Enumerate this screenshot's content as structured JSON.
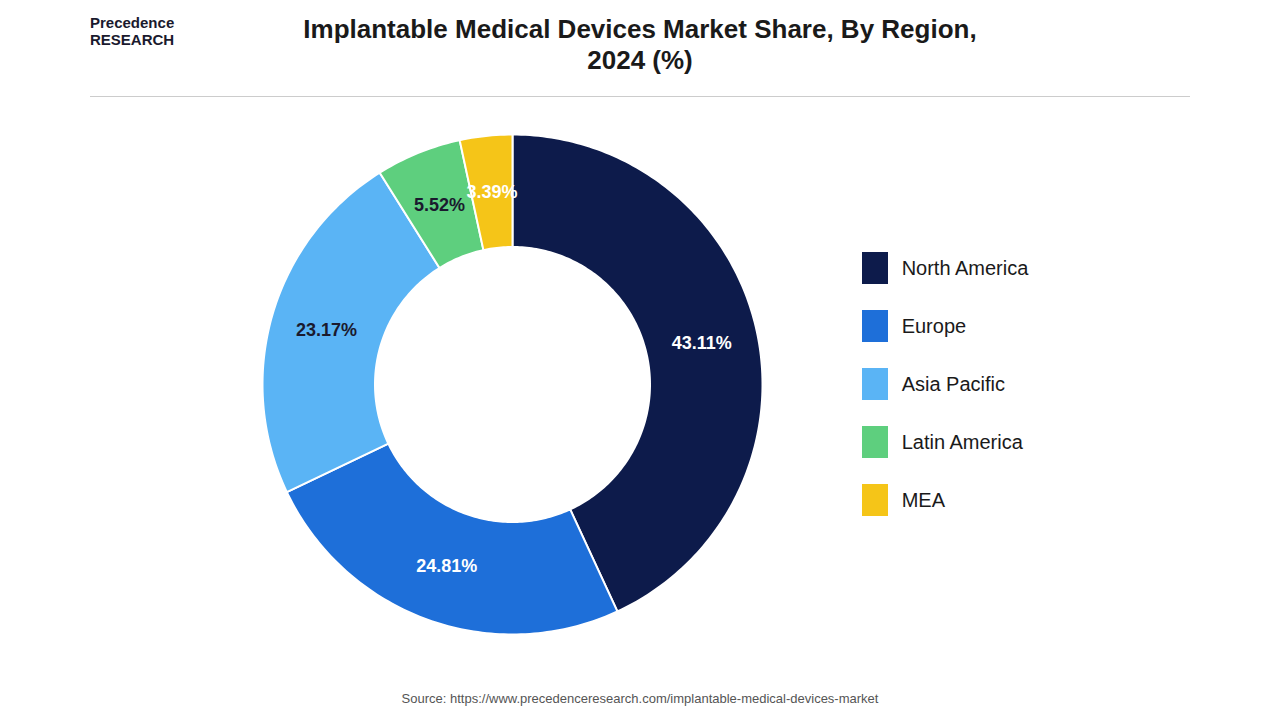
{
  "chart_data": {
    "type": "pie",
    "title": "Implantable Medical Devices Market Share, By Region,\n2024 (%)",
    "categories": [
      "North America",
      "Europe",
      "Asia Pacific",
      "Latin America",
      "MEA"
    ],
    "values": [
      43.11,
      24.81,
      23.17,
      5.52,
      3.39
    ],
    "value_labels": [
      "43.11%",
      "24.81%",
      "23.17%",
      "5.52%",
      "3.39%"
    ],
    "colors": [
      "#0d1b4b",
      "#1e6fd9",
      "#5ab4f5",
      "#5ecf7e",
      "#f5c518"
    ],
    "data_labels": true,
    "legend": "right",
    "annotations": [
      "Precedence\nRESEARCH",
      "Source: https://www.precedenceresearch.com/implantable-medical-devices-market"
    ]
  }
}
